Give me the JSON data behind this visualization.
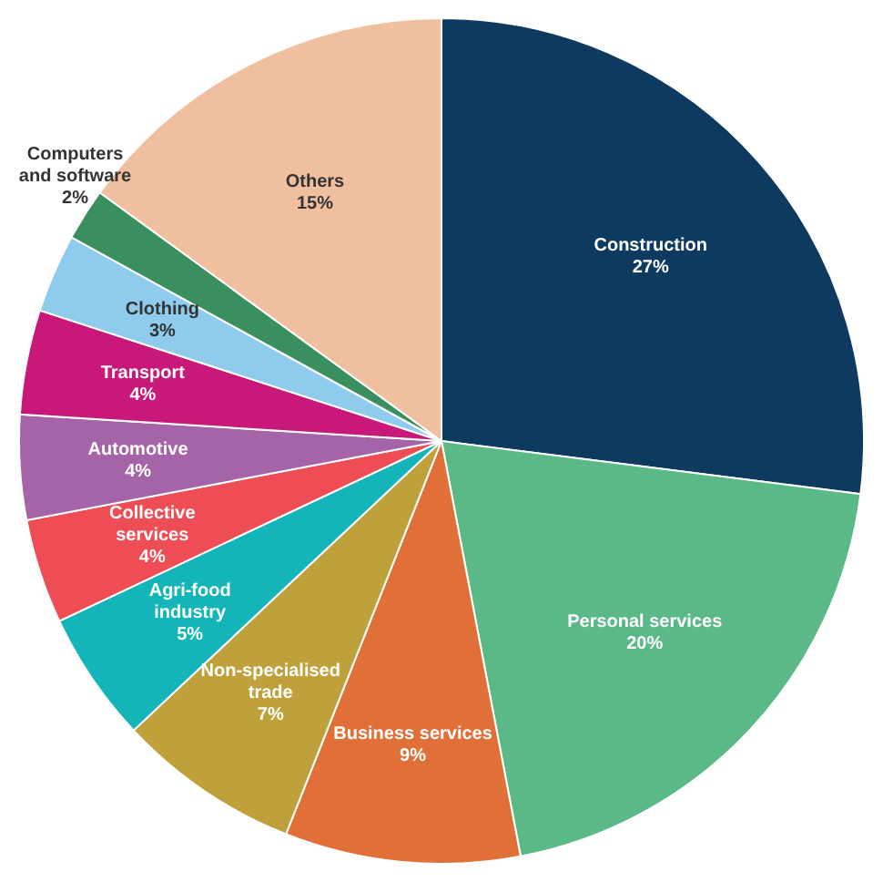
{
  "chart_data": {
    "type": "pie",
    "categories": [
      "Construction",
      "Personal services",
      "Business services",
      "Non-specialised trade",
      "Agri-food industry",
      "Collective services",
      "Automotive",
      "Transport",
      "Clothing",
      "Computers and software",
      "Others"
    ],
    "values": [
      27,
      20,
      9,
      7,
      5,
      4,
      4,
      4,
      3,
      2,
      15
    ],
    "value_labels": [
      "27%",
      "20%",
      "9%",
      "7%",
      "5%",
      "4%",
      "4%",
      "4%",
      "3%",
      "2%",
      "15%"
    ],
    "colors": [
      "#0d3a5e",
      "#5ab987",
      "#e07038",
      "#bea13a",
      "#13b5b8",
      "#ee4d55",
      "#a664a8",
      "#c8197a",
      "#8ecbed",
      "#3a8f5f",
      "#efbfa0"
    ]
  }
}
